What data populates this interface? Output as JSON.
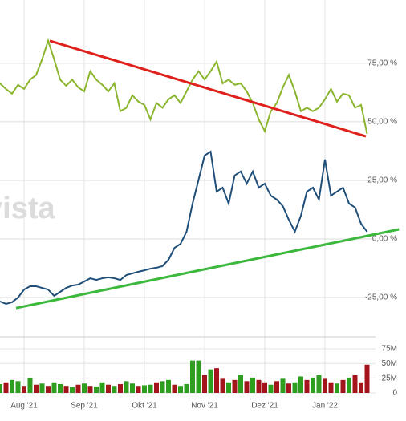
{
  "chart_data": [
    {
      "type": "line",
      "watermark": "vista",
      "ylim": [
        -38,
        102
      ],
      "yticks": [
        {
          "value": 75,
          "label": "75,00 %"
        },
        {
          "value": 50,
          "label": "50,00 %"
        },
        {
          "value": 25,
          "label": "25,00 %"
        },
        {
          "value": 0,
          "label": "0,00 %"
        },
        {
          "value": -25,
          "label": "-25,00 %"
        }
      ],
      "grid": true,
      "series": [
        {
          "color": "#8ab52d",
          "values": [
            66.4,
            64,
            62,
            65.8,
            64,
            68,
            70,
            76.7,
            84.6,
            76.7,
            68,
            65.4,
            68,
            64.7,
            63,
            71.6,
            68,
            65.8,
            63,
            66.4,
            54.5,
            56,
            61.3,
            58.6,
            57.2,
            51,
            58,
            56,
            59.6,
            61.3,
            58,
            63,
            68,
            71.6,
            68,
            71.6,
            75.7,
            66.4,
            68,
            65.8,
            66.4,
            63,
            58,
            51,
            46,
            54.5,
            58,
            64.7,
            70,
            63,
            54.5,
            56,
            54.5,
            56,
            59.6,
            64,
            58.6,
            62,
            61.3,
            56,
            57.2,
            44.9
          ]
        },
        {
          "color": "#1f4e79",
          "values": [
            -26.7,
            -27.7,
            -27,
            -25,
            -21.6,
            -20.2,
            -20.2,
            -20.9,
            -21.6,
            -24.3,
            -22.6,
            -20.9,
            -19.9,
            -19.5,
            -18.2,
            -16.8,
            -17.5,
            -16.8,
            -16.4,
            -16.8,
            -17.5,
            -15.4,
            -14.7,
            -14,
            -13.4,
            -12.7,
            -12.3,
            -11.6,
            -8.9,
            -3.8,
            -2.1,
            3.1,
            15.1,
            25.3,
            35.6,
            37.3,
            20.2,
            21.9,
            15.1,
            27.1,
            28.8,
            23.6,
            28.8,
            21.9,
            23.6,
            18.5,
            16.8,
            14,
            8.2,
            3.1,
            9.9,
            20.2,
            21.9,
            16.8,
            33.9,
            18.5,
            20.2,
            21.9,
            15.1,
            13.4,
            6.5,
            3.1
          ]
        }
      ],
      "trendlines": [
        {
          "color": "#e0201b",
          "points": [
            [
              8.27,
              84.6
            ],
            [
              60.8,
              43.8
            ]
          ]
        },
        {
          "color": "#3cb93c",
          "points": [
            [
              2.67,
              -29.5
            ],
            [
              66.3,
              4.1
            ]
          ]
        }
      ]
    },
    {
      "type": "bar",
      "categories": [
        null,
        null,
        null,
        null,
        "Aug '21",
        null,
        null,
        null,
        null,
        null,
        null,
        null,
        null,
        null,
        "Sep '21",
        null,
        null,
        null,
        null,
        null,
        null,
        null,
        null,
        null,
        "Okt '21",
        null,
        null,
        null,
        null,
        null,
        null,
        null,
        null,
        null,
        "Nov '21",
        null,
        null,
        null,
        null,
        null,
        null,
        null,
        null,
        null,
        "Dez '21",
        null,
        null,
        null,
        null,
        null,
        null,
        null,
        null,
        null,
        "Jan '22",
        null,
        null,
        null,
        null,
        null,
        null,
        null
      ],
      "values": [
        15,
        18,
        22,
        20,
        12,
        25,
        14,
        16,
        12,
        18,
        15,
        12,
        10,
        14,
        16,
        12,
        11,
        18,
        14,
        12,
        15,
        20,
        16,
        12,
        13,
        14,
        18,
        20,
        22,
        14,
        12,
        15,
        55,
        55,
        30,
        40,
        42,
        24,
        18,
        22,
        30,
        20,
        26,
        22,
        18,
        14,
        20,
        24,
        16,
        18,
        28,
        22,
        26,
        30,
        24,
        18,
        16,
        22,
        26,
        30,
        18,
        48
      ],
      "colors": [
        "#2e9e1f",
        "#a3151b",
        "#2e9e1f",
        "#2e9e1f",
        "#a3151b",
        "#2e9e1f",
        "#a3151b",
        "#2e9e1f",
        "#a3151b",
        "#2e9e1f",
        "#2e9e1f",
        "#a3151b",
        "#2e9e1f",
        "#a3151b",
        "#2e9e1f",
        "#a3151b",
        "#2e9e1f",
        "#2e9e1f",
        "#a3151b",
        "#2e9e1f",
        "#a3151b",
        "#2e9e1f",
        "#2e9e1f",
        "#a3151b",
        "#2e9e1f",
        "#2e9e1f",
        "#a3151b",
        "#2e9e1f",
        "#2e9e1f",
        "#a3151b",
        "#2e9e1f",
        "#2e9e1f",
        "#2e9e1f",
        "#2e9e1f",
        "#a3151b",
        "#2e9e1f",
        "#a3151b",
        "#a3151b",
        "#2e9e1f",
        "#a3151b",
        "#2e9e1f",
        "#a3151b",
        "#2e9e1f",
        "#a3151b",
        "#a3151b",
        "#2e9e1f",
        "#a3151b",
        "#2e9e1f",
        "#a3151b",
        "#2e9e1f",
        "#2e9e1f",
        "#a3151b",
        "#2e9e1f",
        "#2e9e1f",
        "#a3151b",
        "#a3151b",
        "#2e9e1f",
        "#a3151b",
        "#2e9e1f",
        "#a3151b",
        "#a3151b",
        "#a3151b"
      ],
      "ylim": [
        0,
        94
      ],
      "yticks": [
        {
          "value": 75,
          "label": "75M"
        },
        {
          "value": 50,
          "label": "50M"
        },
        {
          "value": 25,
          "label": "25M"
        },
        0
      ],
      "grid": true
    }
  ]
}
